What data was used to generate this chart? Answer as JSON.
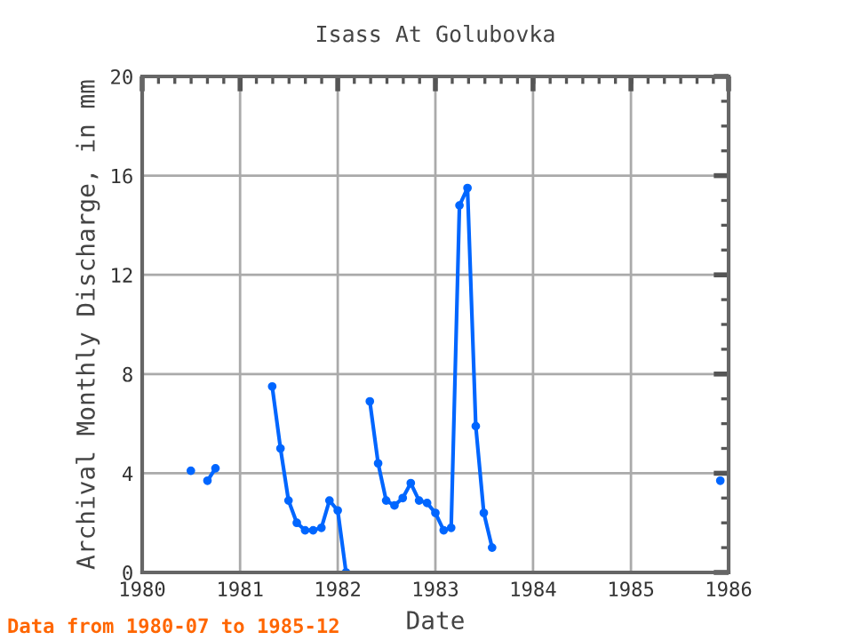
{
  "chart_data": {
    "type": "line",
    "title": "Isass At Golubovka",
    "xlabel": "Date",
    "ylabel": "Archival Monthly Discharge, in mm",
    "x": [
      "1980-07",
      "1980-08",
      "1980-09",
      "1980-10",
      "1980-11",
      "1980-12",
      "1981-01",
      "1981-02",
      "1981-03",
      "1981-04",
      "1981-05",
      "1981-06",
      "1981-07",
      "1981-08",
      "1981-09",
      "1981-10",
      "1981-11",
      "1981-12",
      "1982-01",
      "1982-02",
      "1982-03",
      "1982-04",
      "1982-05",
      "1982-06",
      "1982-07",
      "1982-08",
      "1982-09",
      "1982-10",
      "1982-11",
      "1982-12",
      "1983-01",
      "1983-02",
      "1983-03",
      "1983-04",
      "1983-05",
      "1983-06",
      "1983-07",
      "1983-08",
      "1983-09",
      "1985-11",
      "1985-12"
    ],
    "series": [
      {
        "color": "#0066ff",
        "values": [
          4.1,
          null,
          3.7,
          4.2,
          null,
          null,
          null,
          null,
          null,
          null,
          7.5,
          5.0,
          2.9,
          2.0,
          1.7,
          1.7,
          1.8,
          2.9,
          2.5,
          0.0,
          null,
          null,
          6.9,
          4.4,
          2.9,
          2.7,
          3.0,
          3.6,
          2.9,
          2.8,
          2.4,
          1.7,
          1.8,
          14.8,
          15.5,
          5.9,
          2.4,
          1.0,
          null,
          null,
          3.7
        ]
      }
    ],
    "xlim": [
      "1980-01",
      "1986-01"
    ],
    "xticks": [
      {
        "value": "1980-01",
        "label": "1980"
      },
      {
        "value": "1981-01",
        "label": "1981"
      },
      {
        "value": "1982-01",
        "label": "1982"
      },
      {
        "value": "1983-01",
        "label": "1983"
      },
      {
        "value": "1984-01",
        "label": "1984"
      },
      {
        "value": "1985-01",
        "label": "1985"
      },
      {
        "value": "1986-01",
        "label": "1986"
      }
    ],
    "ylim": [
      0,
      20
    ],
    "yticks": [
      0,
      4,
      8,
      12,
      16,
      20
    ],
    "grid": true,
    "marker": "circle",
    "line_style": "solid",
    "annotations": [
      "Data from 1980-07 to 1985-12"
    ]
  }
}
